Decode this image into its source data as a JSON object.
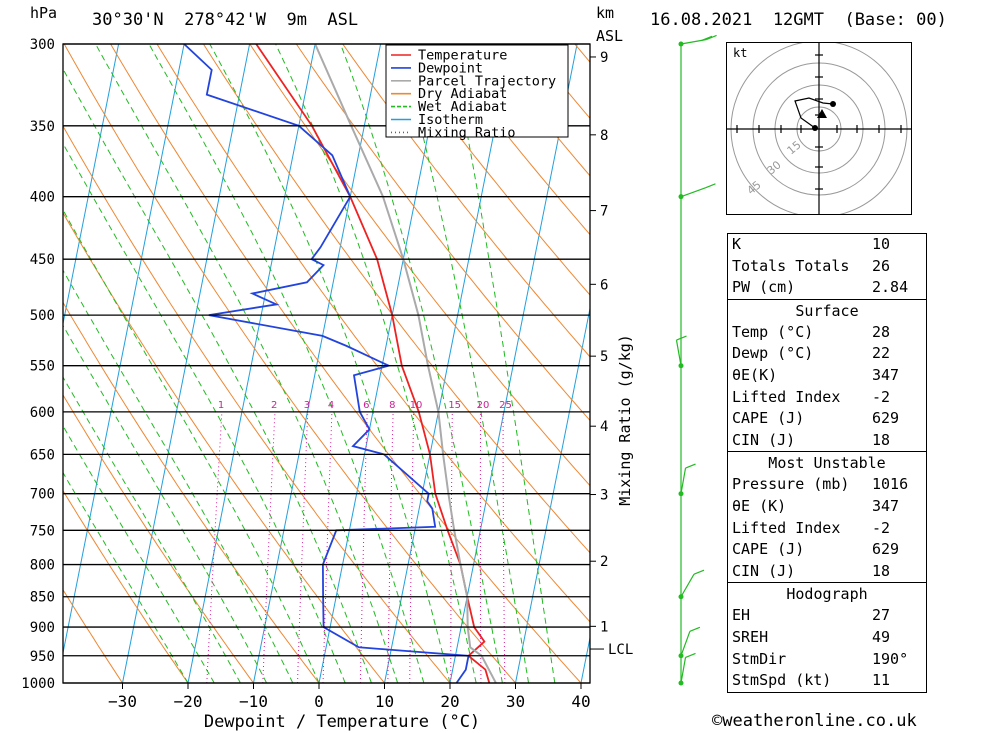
{
  "header": {
    "hpa_label": "hPa",
    "location": "30°30'N  278°42'W  9m  ASL",
    "km_label": "km",
    "asl_label": "ASL",
    "datetime": "16.08.2021  12GMT  (Base: 00)"
  },
  "chart_data": {
    "type": "line",
    "xlabel": "Dewpoint / Temperature (°C)",
    "ylabel": "hPa",
    "xticks": [
      -30,
      -20,
      -10,
      0,
      10,
      20,
      30,
      40
    ],
    "pressure_levels": [
      300,
      350,
      400,
      450,
      500,
      550,
      600,
      650,
      700,
      750,
      800,
      850,
      900,
      950,
      1000
    ],
    "km_ticks": [
      1,
      2,
      3,
      4,
      5,
      6,
      7,
      8,
      9
    ],
    "lcl_label": "LCL",
    "mixing_ratio_label": "Mixing Ratio (g/kg)",
    "mixing_ratio_values": [
      1,
      2,
      3,
      4,
      6,
      8,
      10,
      15,
      20,
      25
    ],
    "legend": [
      {
        "name": "Temperature",
        "color": "#ee2222"
      },
      {
        "name": "Dewpoint",
        "color": "#2244dd"
      },
      {
        "name": "Parcel Trajectory",
        "color": "#aaaaaa"
      },
      {
        "name": "Dry Adiabat",
        "color": "#ee8833"
      },
      {
        "name": "Wet Adiabat",
        "color": "#22bb22"
      },
      {
        "name": "Isotherm",
        "color": "#22a0dd"
      },
      {
        "name": "Mixing Ratio",
        "color": "#cc2299"
      }
    ],
    "series": [
      {
        "name": "Temperature",
        "color": "#ee2222",
        "points": [
          [
            1016,
            28
          ],
          [
            1000,
            26
          ],
          [
            975,
            25
          ],
          [
            950,
            22
          ],
          [
            925,
            24
          ],
          [
            900,
            22
          ],
          [
            850,
            20
          ],
          [
            800,
            18
          ],
          [
            750,
            15
          ],
          [
            700,
            12
          ],
          [
            650,
            10
          ],
          [
            600,
            7
          ],
          [
            550,
            3
          ],
          [
            500,
            0
          ],
          [
            450,
            -4
          ],
          [
            400,
            -10
          ],
          [
            350,
            -18
          ],
          [
            300,
            -29
          ]
        ]
      },
      {
        "name": "Dewpoint",
        "color": "#2244dd",
        "points": [
          [
            1016,
            22
          ],
          [
            1000,
            21
          ],
          [
            975,
            22
          ],
          [
            950,
            22
          ],
          [
            935,
            5
          ],
          [
            900,
            -1
          ],
          [
            850,
            -2
          ],
          [
            800,
            -3
          ],
          [
            750,
            -2
          ],
          [
            745,
            13
          ],
          [
            720,
            12
          ],
          [
            710,
            11
          ],
          [
            700,
            11
          ],
          [
            650,
            3
          ],
          [
            640,
            -2
          ],
          [
            620,
            0
          ],
          [
            600,
            -2
          ],
          [
            560,
            -4
          ],
          [
            550,
            1
          ],
          [
            530,
            -6
          ],
          [
            520,
            -10
          ],
          [
            500,
            -28
          ],
          [
            490,
            -18
          ],
          [
            480,
            -22
          ],
          [
            470,
            -14
          ],
          [
            455,
            -12
          ],
          [
            450,
            -14
          ],
          [
            440,
            -13
          ],
          [
            400,
            -10
          ],
          [
            370,
            -14
          ],
          [
            350,
            -20
          ],
          [
            330,
            -35
          ],
          [
            315,
            -35
          ],
          [
            300,
            -40
          ]
        ]
      },
      {
        "name": "Parcel Trajectory",
        "color": "#aaaaaa",
        "points": [
          [
            1016,
            28
          ],
          [
            1000,
            27
          ],
          [
            950,
            24
          ],
          [
            935,
            22
          ],
          [
            900,
            21
          ],
          [
            850,
            20
          ],
          [
            800,
            18
          ],
          [
            750,
            16
          ],
          [
            700,
            14
          ],
          [
            650,
            12
          ],
          [
            600,
            10
          ],
          [
            550,
            7
          ],
          [
            500,
            4
          ],
          [
            450,
            0
          ],
          [
            400,
            -5
          ],
          [
            350,
            -12
          ],
          [
            300,
            -20
          ]
        ]
      }
    ],
    "winds": [
      {
        "p": 1000,
        "dir": 190,
        "spd": 11
      },
      {
        "p": 950,
        "dir": 200,
        "spd": 10
      },
      {
        "p": 850,
        "dir": 210,
        "spd": 12
      },
      {
        "p": 700,
        "dir": 190,
        "spd": 10
      },
      {
        "p": 550,
        "dir": 170,
        "spd": 8
      },
      {
        "p": 400,
        "dir": 250,
        "spd": 10
      },
      {
        "p": 300,
        "dir": 260,
        "spd": 15
      }
    ]
  },
  "hodograph": {
    "unit_label": "kt",
    "ring_labels": [
      "15",
      "30",
      "45"
    ]
  },
  "indices": {
    "top": [
      {
        "label": "K",
        "value": "10"
      },
      {
        "label": "Totals Totals",
        "value": "26"
      },
      {
        "label": "PW (cm)",
        "value": "2.84"
      }
    ],
    "surface_title": "Surface",
    "surface": [
      {
        "label": "Temp (°C)",
        "value": "28"
      },
      {
        "label": "Dewp (°C)",
        "value": "22"
      },
      {
        "label": "θE(K)",
        "value": "347"
      },
      {
        "label": "Lifted Index",
        "value": "-2"
      },
      {
        "label": "CAPE (J)",
        "value": "629"
      },
      {
        "label": "CIN (J)",
        "value": "18"
      }
    ],
    "mu_title": "Most Unstable",
    "mu": [
      {
        "label": "Pressure (mb)",
        "value": "1016"
      },
      {
        "label": "θE (K)",
        "value": "347"
      },
      {
        "label": "Lifted Index",
        "value": "-2"
      },
      {
        "label": "CAPE (J)",
        "value": "629"
      },
      {
        "label": "CIN (J)",
        "value": "18"
      }
    ],
    "hodo_title": "Hodograph",
    "hodo": [
      {
        "label": "EH",
        "value": "27"
      },
      {
        "label": "SREH",
        "value": "49"
      },
      {
        "label": "StmDir",
        "value": "190°"
      },
      {
        "label": "StmSpd (kt)",
        "value": "11"
      }
    ]
  },
  "footer": "©weatheronline.co.uk"
}
